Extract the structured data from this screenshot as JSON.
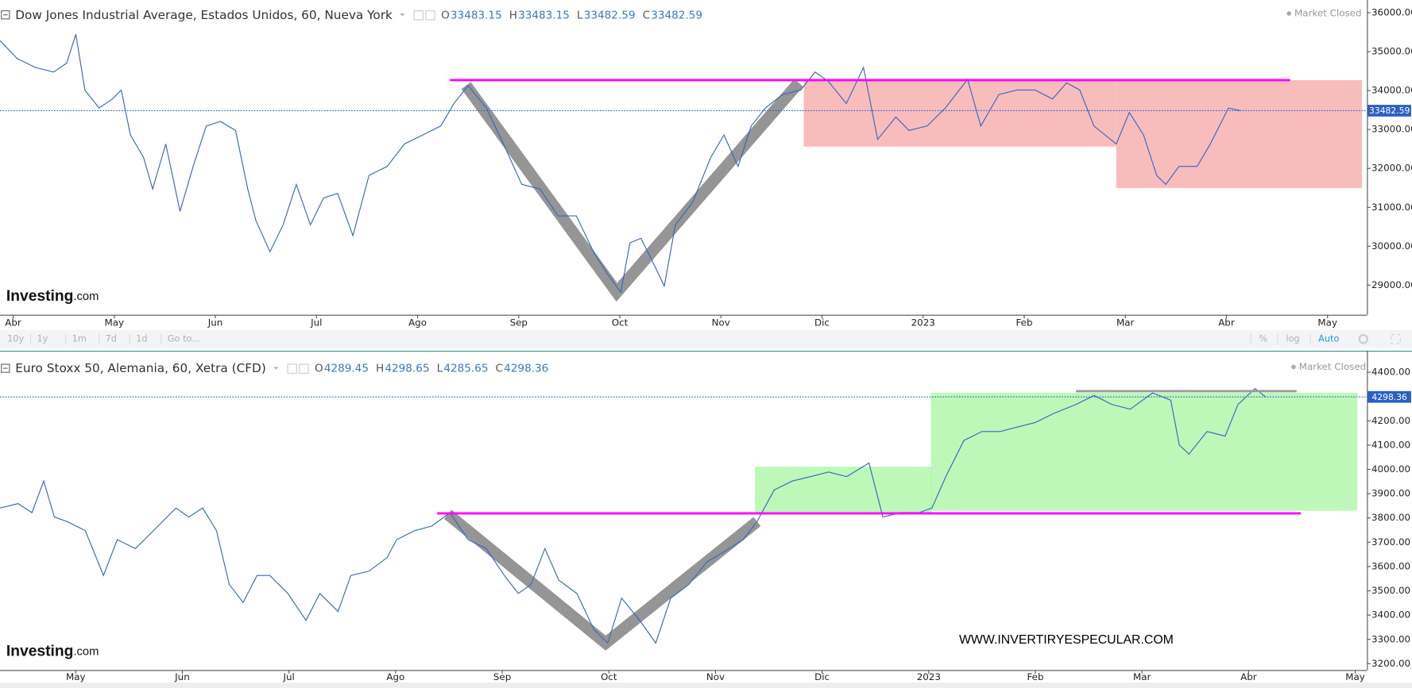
{
  "chart_data": [
    {
      "type": "line",
      "title": "Dow Jones Industrial Average, Estados Unidos, 60, Nueva York",
      "ohlc": [
        {
          "label": "O",
          "value": 33483.15
        },
        {
          "label": "H",
          "value": 33483.15
        },
        {
          "label": "L",
          "value": 33482.59
        },
        {
          "label": "C",
          "value": 33482.59
        }
      ],
      "status": "Market Closed",
      "color": "#3366c6",
      "x": [
        -0.13,
        0.04,
        0.22,
        0.4,
        0.53,
        0.62,
        0.71,
        0.85,
        0.98,
        1.07,
        1.16,
        1.29,
        1.38,
        1.51,
        1.65,
        1.78,
        1.91,
        2.05,
        2.2,
        2.32,
        2.4,
        2.54,
        2.67,
        2.8,
        2.94,
        3.07,
        3.21,
        3.36,
        3.52,
        3.7,
        3.87,
        4.05,
        4.23,
        4.36,
        4.5,
        4.68,
        4.85,
        5.03,
        5.21,
        5.39,
        5.57,
        5.74,
        5.88,
        6.01,
        6.1,
        6.21,
        6.32,
        6.44,
        6.55,
        6.72,
        6.9,
        7.03,
        7.17,
        7.3,
        7.44,
        7.61,
        7.79,
        7.93,
        8.06,
        8.24,
        8.41,
        8.55,
        8.73,
        8.86,
        9.04,
        9.22,
        9.44,
        9.57,
        9.75,
        9.93,
        10.11,
        10.28,
        10.42,
        10.55,
        10.69,
        10.91,
        11.04,
        11.18,
        11.31,
        11.4,
        11.53,
        11.71,
        11.84,
        12.02,
        12.14
      ],
      "values": [
        35284,
        34822,
        34592,
        34476,
        34707,
        35446,
        34014,
        33552,
        33783,
        34014,
        32859,
        32282,
        31473,
        32628,
        30896,
        32051,
        33090,
        33206,
        32975,
        31473,
        30665,
        29857,
        30550,
        31589,
        30550,
        31242,
        31358,
        30273,
        31820,
        32051,
        32628,
        32859,
        33090,
        33667,
        34129,
        33552,
        32628,
        31589,
        31473,
        30781,
        30781,
        29857,
        29280,
        28818,
        30088,
        30203,
        29626,
        28979,
        30550,
        31127,
        32282,
        32859,
        32051,
        33090,
        33552,
        33898,
        34014,
        34476,
        34245,
        33667,
        34592,
        32744,
        33321,
        32975,
        33090,
        33552,
        34291,
        33090,
        33898,
        34014,
        34014,
        33783,
        34199,
        34014,
        33090,
        32628,
        33437,
        32859,
        31820,
        31589,
        32051,
        32051,
        32628,
        33552,
        33483
      ],
      "last_price": 33482.59,
      "xlim": [
        -0.13,
        13.39
      ],
      "xticks": [
        {
          "value": 0,
          "label": "Abr"
        },
        {
          "value": 1,
          "label": "May"
        },
        {
          "value": 2,
          "label": "Jun"
        },
        {
          "value": 3,
          "label": "Jul"
        },
        {
          "value": 4,
          "label": "Ago"
        },
        {
          "value": 5,
          "label": "Sep"
        },
        {
          "value": 6,
          "label": "Oct"
        },
        {
          "value": 7,
          "label": "Nov"
        },
        {
          "value": 8,
          "label": "Dic"
        },
        {
          "value": 9,
          "label": "2023"
        },
        {
          "value": 10,
          "label": "Feb"
        },
        {
          "value": 11,
          "label": "Mar"
        },
        {
          "value": 12,
          "label": "Abr"
        },
        {
          "value": 13,
          "label": "May"
        }
      ],
      "ylim": [
        28240,
        36210
      ],
      "yticks": [
        {
          "value": 29000,
          "label": "29000.00"
        },
        {
          "value": 30000,
          "label": "30000.00"
        },
        {
          "value": 31000,
          "label": "31000.00"
        },
        {
          "value": 32000,
          "label": "32000.00"
        },
        {
          "value": 33000,
          "label": "33000.00"
        },
        {
          "value": 34000,
          "label": "34000.00"
        },
        {
          "value": 35000,
          "label": "35000.00"
        },
        {
          "value": 36000,
          "label": "36000.00"
        }
      ],
      "grid": false,
      "boxes": [
        {
          "x": [
            7.82,
            10.91
          ],
          "y": [
            32559,
            34268
          ],
          "color": "#f7a5a5"
        },
        {
          "x": [
            10.91,
            13.34
          ],
          "y": [
            31497,
            34268
          ],
          "color": "#f7a5a5"
        }
      ],
      "hlines": [
        {
          "x": [
            4.32,
            12.63
          ],
          "y": 34268,
          "color": "#ff00ff"
        }
      ],
      "vshape": {
        "x": [
          4.48,
          5.97,
          7.77
        ],
        "y": [
          34129,
          28818,
          34199
        ],
        "color": "#8a8a8a"
      }
    },
    {
      "type": "line",
      "title": "Euro Stoxx 50, Alemania, 60, Xetra (CFD)",
      "ohlc": [
        {
          "label": "O",
          "value": 4289.45
        },
        {
          "label": "H",
          "value": 4298.65
        },
        {
          "label": "L",
          "value": 4285.65
        },
        {
          "label": "C",
          "value": 4298.36
        }
      ],
      "status": "Market Closed",
      "color": "#3366c6",
      "x": [
        0.29,
        0.46,
        0.59,
        0.7,
        0.8,
        0.92,
        1.09,
        1.26,
        1.39,
        1.56,
        1.73,
        1.94,
        2.06,
        2.19,
        2.32,
        2.44,
        2.57,
        2.7,
        2.82,
        2.99,
        3.16,
        3.29,
        3.46,
        3.58,
        3.75,
        3.92,
        4.01,
        4.18,
        4.34,
        4.51,
        4.68,
        4.85,
        5.02,
        5.15,
        5.27,
        5.4,
        5.53,
        5.7,
        5.86,
        5.99,
        6.12,
        6.29,
        6.44,
        6.58,
        6.75,
        6.92,
        7.13,
        7.26,
        7.39,
        7.55,
        7.72,
        7.89,
        8.06,
        8.23,
        8.44,
        8.57,
        8.74,
        8.91,
        9.03,
        9.16,
        9.33,
        9.5,
        9.67,
        9.83,
        10.0,
        10.17,
        10.38,
        10.55,
        10.72,
        10.89,
        11.1,
        11.27,
        11.35,
        11.44,
        11.61,
        11.78,
        11.9,
        12.06,
        12.16
      ],
      "values": [
        3841,
        3859,
        3822,
        3952,
        3804,
        3785,
        3748,
        3563,
        3711,
        3674,
        3748,
        3841,
        3804,
        3841,
        3748,
        3526,
        3452,
        3563,
        3563,
        3489,
        3378,
        3489,
        3415,
        3563,
        3581,
        3637,
        3711,
        3748,
        3767,
        3822,
        3711,
        3674,
        3563,
        3489,
        3526,
        3674,
        3544,
        3489,
        3341,
        3285,
        3470,
        3378,
        3285,
        3470,
        3526,
        3619,
        3674,
        3711,
        3785,
        3915,
        3952,
        3970,
        3989,
        3970,
        4026,
        3804,
        3822,
        3822,
        3841,
        3970,
        4119,
        4156,
        4156,
        4174,
        4193,
        4230,
        4267,
        4304,
        4267,
        4248,
        4315,
        4285,
        4100,
        4063,
        4156,
        4137,
        4267,
        4333,
        4298
      ],
      "last_price": 4298.36,
      "xlim": [
        0.29,
        13.11
      ],
      "xticks": [
        {
          "value": 1,
          "label": "May"
        },
        {
          "value": 2,
          "label": "Jun"
        },
        {
          "value": 3,
          "label": "Jul"
        },
        {
          "value": 4,
          "label": "Ago"
        },
        {
          "value": 5,
          "label": "Sep"
        },
        {
          "value": 6,
          "label": "Oct"
        },
        {
          "value": 7,
          "label": "Nov"
        },
        {
          "value": 8,
          "label": "Dic"
        },
        {
          "value": 9,
          "label": "2023"
        },
        {
          "value": 10,
          "label": "Feb"
        },
        {
          "value": 11,
          "label": "Mar"
        },
        {
          "value": 12,
          "label": "Abr"
        },
        {
          "value": 13,
          "label": "May"
        }
      ],
      "ylim": [
        3174,
        4470
      ],
      "yticks": [
        {
          "value": 3200,
          "label": "3200.00"
        },
        {
          "value": 3300,
          "label": "3300.00"
        },
        {
          "value": 3400,
          "label": "3400.00"
        },
        {
          "value": 3500,
          "label": "3500.00"
        },
        {
          "value": 3600,
          "label": "3600.00"
        },
        {
          "value": 3700,
          "label": "3700.00"
        },
        {
          "value": 3800,
          "label": "3800.00"
        },
        {
          "value": 3900,
          "label": "3900.00"
        },
        {
          "value": 4000,
          "label": "4000.00"
        },
        {
          "value": 4100,
          "label": "4100.00"
        },
        {
          "value": 4200,
          "label": "4200.00"
        },
        {
          "value": 4300,
          "label": "4300.00"
        },
        {
          "value": 4400,
          "label": "4400.00"
        }
      ],
      "grid": false,
      "boxes": [
        {
          "x": [
            7.37,
            9.03
          ],
          "y": [
            3819,
            4011
          ],
          "color": "#a8f5a0"
        },
        {
          "x": [
            9.02,
            13.02
          ],
          "y": [
            3830,
            4315
          ],
          "color": "#a8f5a0"
        }
      ],
      "hlines": [
        {
          "x": [
            4.39,
            12.49
          ],
          "y": 3819,
          "color": "#ff00ff"
        },
        {
          "x": [
            10.38,
            12.45
          ],
          "y": 4322,
          "color": "#9a9a9a"
        }
      ],
      "vshape": {
        "x": [
          4.49,
          5.97,
          7.39
        ],
        "y": [
          3815,
          3285,
          3785
        ],
        "color": "#8a8a8a"
      }
    }
  ],
  "logo": {
    "name": "Investing",
    "suffix": ".com"
  },
  "toolbar": {
    "left": [
      "10y",
      "1y",
      "1m",
      "7d",
      "1d",
      "Go to..."
    ],
    "right": [
      "%",
      "log",
      "Auto"
    ]
  },
  "watermark": "WWW.INVERTIRYESPECULAR.COM"
}
